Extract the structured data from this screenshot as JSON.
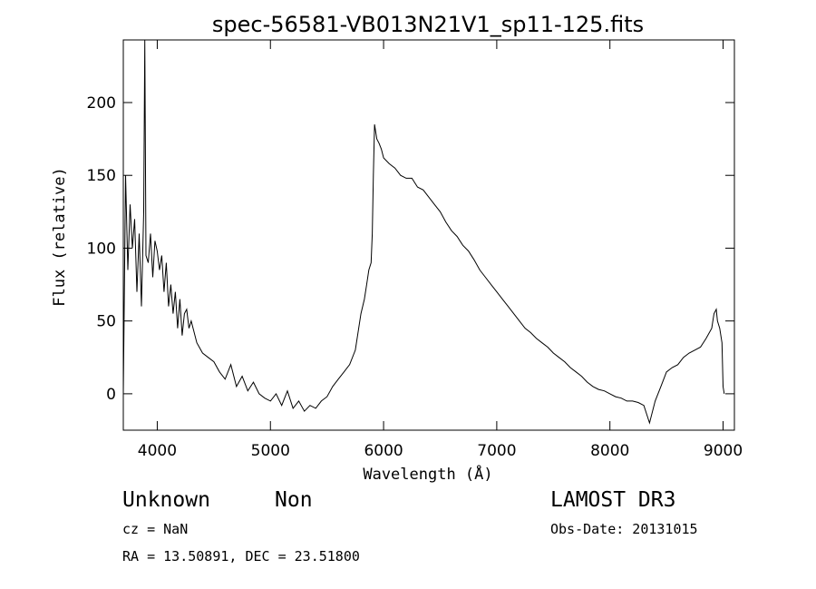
{
  "chart_data": {
    "type": "line",
    "title": "spec-56581-VB013N21V1_sp11-125.fits",
    "xlabel": "Wavelength (Å)",
    "ylabel": "Flux (relative)",
    "xlim": [
      3700,
      9100
    ],
    "ylim": [
      -25,
      243
    ],
    "xticks": [
      4000,
      5000,
      6000,
      7000,
      8000,
      9000
    ],
    "yticks": [
      0,
      50,
      100,
      150,
      200
    ],
    "grid": false,
    "series": [
      {
        "x": [
          3700,
          3720,
          3740,
          3760,
          3780,
          3800,
          3820,
          3840,
          3860,
          3880,
          3890,
          3900,
          3920,
          3940,
          3960,
          3980,
          4000,
          4020,
          4040,
          4060,
          4080,
          4100,
          4120,
          4140,
          4160,
          4180,
          4200,
          4220,
          4240,
          4260,
          4280,
          4300,
          4350,
          4400,
          4450,
          4500,
          4550,
          4600,
          4650,
          4700,
          4750,
          4800,
          4850,
          4900,
          4950,
          5000,
          5050,
          5100,
          5150,
          5200,
          5250,
          5300,
          5350,
          5400,
          5450,
          5500,
          5550,
          5600,
          5650,
          5700,
          5750,
          5800,
          5830,
          5850,
          5870,
          5890,
          5900,
          5910,
          5920,
          5940,
          5960,
          5980,
          6000,
          6050,
          6100,
          6150,
          6200,
          6250,
          6300,
          6350,
          6400,
          6450,
          6500,
          6550,
          6600,
          6650,
          6700,
          6750,
          6800,
          6850,
          6900,
          6950,
          7000,
          7050,
          7100,
          7150,
          7200,
          7250,
          7300,
          7350,
          7400,
          7450,
          7500,
          7550,
          7600,
          7650,
          7700,
          7750,
          7800,
          7850,
          7900,
          7950,
          8000,
          8050,
          8100,
          8150,
          8200,
          8250,
          8300,
          8350,
          8400,
          8450,
          8500,
          8550,
          8600,
          8650,
          8700,
          8750,
          8800,
          8850,
          8900,
          8920,
          8940,
          8950,
          8970,
          8990,
          9000,
          9010
        ],
        "y": [
          0,
          150,
          85,
          130,
          100,
          120,
          70,
          110,
          60,
          125,
          243,
          95,
          90,
          110,
          80,
          105,
          98,
          85,
          95,
          70,
          90,
          60,
          75,
          55,
          70,
          45,
          65,
          40,
          55,
          58,
          45,
          50,
          35,
          28,
          25,
          22,
          15,
          10,
          20,
          5,
          12,
          2,
          8,
          0,
          -3,
          -5,
          0,
          -8,
          2,
          -10,
          -5,
          -12,
          -8,
          -10,
          -5,
          -2,
          5,
          10,
          15,
          20,
          30,
          55,
          65,
          75,
          85,
          90,
          110,
          150,
          185,
          175,
          172,
          168,
          162,
          158,
          155,
          150,
          148,
          148,
          142,
          140,
          135,
          130,
          125,
          118,
          112,
          108,
          102,
          98,
          92,
          85,
          80,
          75,
          70,
          65,
          60,
          55,
          50,
          45,
          42,
          38,
          35,
          32,
          28,
          25,
          22,
          18,
          15,
          12,
          8,
          5,
          3,
          2,
          0,
          -2,
          -3,
          -5,
          -5,
          -6,
          -8,
          -20,
          -5,
          5,
          15,
          18,
          20,
          25,
          28,
          30,
          32,
          38,
          45,
          55,
          58,
          50,
          45,
          35,
          5,
          0
        ]
      }
    ]
  },
  "footer": {
    "object_class": "Unknown",
    "object_subclass": "Non",
    "survey": "LAMOST DR3",
    "redshift": "cz = NaN",
    "obs_date": "Obs-Date: 20131015",
    "coordinates": "RA =  13.50891, DEC =  23.51800"
  }
}
